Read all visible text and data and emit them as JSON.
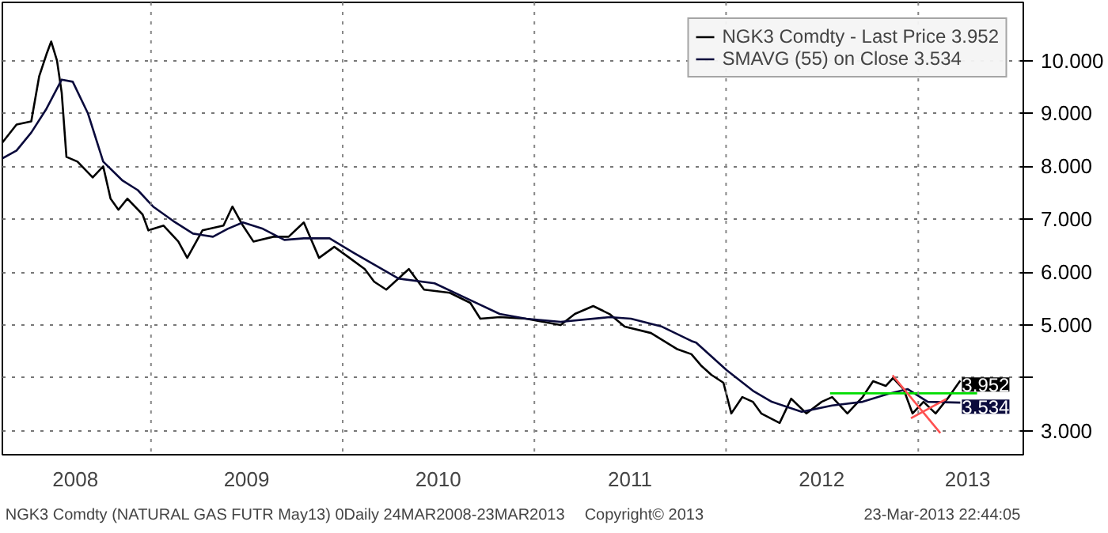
{
  "chart_data": {
    "type": "line",
    "xlim": [
      "2008-03-24",
      "2013-07-20"
    ],
    "ylim": [
      2.55,
      11.1
    ],
    "xticks": [
      {
        "value": "2008-08-10",
        "label": "2008"
      },
      {
        "value": "2009-07-02",
        "label": "2009"
      },
      {
        "value": "2010-07-02",
        "label": "2010"
      },
      {
        "value": "2011-07-02",
        "label": "2011"
      },
      {
        "value": "2012-07-01",
        "label": "2012"
      },
      {
        "value": "2013-04-05",
        "label": "2013"
      }
    ],
    "yticks": [
      {
        "value": 3,
        "label": "3.000"
      },
      {
        "value": 4,
        "label": null
      },
      {
        "value": 5,
        "label": "5.000"
      },
      {
        "value": 6,
        "label": "6.000"
      },
      {
        "value": 7,
        "label": "7.000"
      },
      {
        "value": 8,
        "label": "8.000"
      },
      {
        "value": 9,
        "label": "9.000"
      },
      {
        "value": 10,
        "label": "10.000"
      }
    ],
    "grid": "y",
    "legend": "top right",
    "line_style": "solid",
    "ref_lines": [
      {
        "axis": "x",
        "value": "2009-01-01",
        "label": null,
        "color": "#888888",
        "line_style": "dotted"
      },
      {
        "axis": "x",
        "value": "2010-01-01",
        "label": null,
        "color": "#888888",
        "line_style": "dotted"
      },
      {
        "axis": "x",
        "value": "2011-01-01",
        "label": null,
        "color": "#888888",
        "line_style": "dotted"
      },
      {
        "axis": "x",
        "value": "2012-01-01",
        "label": null,
        "color": "#888888",
        "line_style": "dotted"
      },
      {
        "axis": "x",
        "value": "2013-01-01",
        "label": null,
        "color": "#888888",
        "line_style": "dotted"
      }
    ],
    "annotations": [
      "NGK3 Comdty (NATURAL GAS FUTR  May13) 0Daily 24MAR2008-23MAR2013",
      "Copyright© 2013",
      "23-Mar-2013 22:44:05",
      {
        "text": "3.952",
        "x": "2013-03-22",
        "y": 3.952
      },
      {
        "text": "3.534",
        "x": "2013-03-22",
        "y": 3.534
      }
    ],
    "series": [
      {
        "name": "NGK3 Comdty - Last Price 3.952",
        "color": "#000000",
        "x": [
          "2008-03-24",
          "2008-04-20",
          "2008-05-18",
          "2008-06-02",
          "2008-06-16",
          "2008-06-25",
          "2008-07-06",
          "2008-07-15",
          "2008-07-24",
          "2008-08-14",
          "2008-09-12",
          "2008-10-02",
          "2008-10-16",
          "2008-10-31",
          "2008-11-17",
          "2008-12-16",
          "2008-12-27",
          "2009-01-25",
          "2009-02-22",
          "2009-03-11",
          "2009-04-09",
          "2009-05-19",
          "2009-06-05",
          "2009-06-25",
          "2009-07-15",
          "2009-08-22",
          "2009-09-20",
          "2009-10-19",
          "2009-11-17",
          "2009-12-16",
          "2010-01-14",
          "2010-02-12",
          "2010-03-02",
          "2010-03-25",
          "2010-05-07",
          "2010-06-05",
          "2010-07-24",
          "2010-09-01",
          "2010-09-20",
          "2010-10-27",
          "2010-12-16",
          "2011-02-20",
          "2011-03-19",
          "2011-04-23",
          "2011-05-24",
          "2011-06-22",
          "2011-08-11",
          "2011-09-29",
          "2011-10-27",
          "2011-11-14",
          "2011-12-04",
          "2011-12-27",
          "2012-01-11",
          "2012-02-01",
          "2012-02-21",
          "2012-03-08",
          "2012-04-12",
          "2012-05-04",
          "2012-06-02",
          "2012-07-01",
          "2012-07-21",
          "2012-08-19",
          "2012-09-17",
          "2012-10-07",
          "2012-10-31",
          "2012-11-14",
          "2012-12-04",
          "2012-12-21",
          "2013-01-11",
          "2013-02-03",
          "2013-02-28",
          "2013-03-22"
        ],
        "values": [
          8.45,
          8.79,
          8.85,
          9.7,
          10.12,
          10.36,
          10.0,
          9.39,
          8.18,
          8.09,
          7.79,
          8.0,
          7.39,
          7.18,
          7.39,
          7.09,
          6.79,
          6.88,
          6.58,
          6.27,
          6.79,
          6.88,
          7.24,
          6.88,
          6.58,
          6.67,
          6.67,
          6.94,
          6.27,
          6.48,
          6.27,
          6.06,
          5.82,
          5.67,
          6.06,
          5.67,
          5.61,
          5.42,
          5.12,
          5.15,
          5.12,
          5.0,
          5.21,
          5.36,
          5.21,
          4.97,
          4.85,
          4.55,
          4.45,
          4.24,
          4.06,
          3.91,
          3.33,
          3.64,
          3.55,
          3.33,
          3.15,
          3.61,
          3.33,
          3.55,
          3.64,
          3.33,
          3.64,
          3.94,
          3.85,
          4.0,
          3.79,
          3.33,
          3.55,
          3.33,
          3.64,
          3.952
        ]
      },
      {
        "name": "SMAVG (55) on Close 3.534",
        "color": "#0a0a3c",
        "x": [
          "2008-03-24",
          "2008-04-20",
          "2008-05-18",
          "2008-06-16",
          "2008-07-15",
          "2008-08-05",
          "2008-09-03",
          "2008-10-02",
          "2008-11-08",
          "2008-12-07",
          "2009-01-05",
          "2009-02-12",
          "2009-03-22",
          "2009-04-29",
          "2009-05-27",
          "2009-06-25",
          "2009-08-02",
          "2009-09-12",
          "2009-10-19",
          "2009-12-07",
          "2010-01-23",
          "2010-04-17",
          "2010-06-25",
          "2010-08-22",
          "2010-10-27",
          "2010-12-16",
          "2011-02-20",
          "2011-05-24",
          "2011-07-04",
          "2011-09-01",
          "2011-10-27",
          "2011-11-05",
          "2012-01-02",
          "2012-02-21",
          "2012-03-28",
          "2012-05-24",
          "2012-07-21",
          "2012-09-17",
          "2012-11-05",
          "2012-12-12",
          "2013-01-19",
          "2013-03-22"
        ],
        "values": [
          8.15,
          8.3,
          8.64,
          9.09,
          9.64,
          9.6,
          9.0,
          8.09,
          7.73,
          7.55,
          7.24,
          6.97,
          6.73,
          6.67,
          6.82,
          6.94,
          6.82,
          6.61,
          6.64,
          6.64,
          6.36,
          5.88,
          5.79,
          5.52,
          5.21,
          5.12,
          5.06,
          5.15,
          5.12,
          4.97,
          4.7,
          4.67,
          4.15,
          3.76,
          3.55,
          3.36,
          3.48,
          3.55,
          3.7,
          3.79,
          3.55,
          3.534
        ]
      },
      {
        "type": "line",
        "color": "#00dd00",
        "x": [
          "2012-07-17",
          "2013-04-23"
        ],
        "values": [
          3.71,
          3.71
        ]
      },
      {
        "type": "line",
        "color": "#ff5050",
        "x": [
          "2012-11-13",
          "2013-02-12"
        ],
        "values": [
          4.05,
          2.96
        ]
      },
      {
        "type": "line",
        "color": "#ff5050",
        "x": [
          "2012-12-18",
          "2013-02-23"
        ],
        "values": [
          3.24,
          3.6
        ]
      }
    ]
  }
}
